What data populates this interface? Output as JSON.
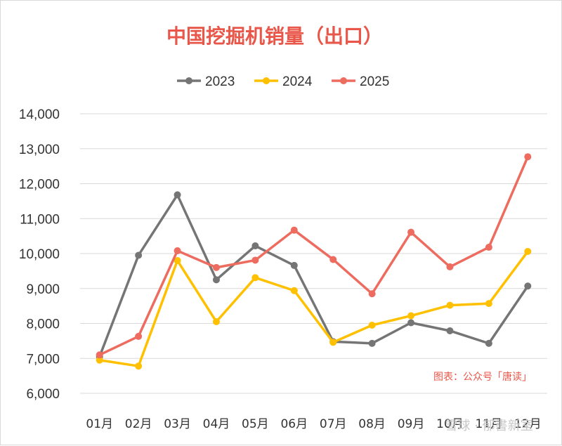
{
  "chart_data": {
    "type": "line",
    "title": "中国挖掘机销量（出口）",
    "xlabel": "",
    "ylabel": "",
    "categories": [
      "01月",
      "02月",
      "03月",
      "04月",
      "05月",
      "06月",
      "07月",
      "08月",
      "09月",
      "10月",
      "11月",
      "12月"
    ],
    "ylim": [
      6000,
      14000
    ],
    "yticks": [
      "6,000",
      "7,000",
      "8,000",
      "9,000",
      "10,000",
      "11,000",
      "12,000",
      "13,000",
      "14,000"
    ],
    "grid": true,
    "legend_position": "top",
    "series": [
      {
        "name": "2023",
        "color": "#757575",
        "values": [
          7050,
          9950,
          11680,
          9250,
          10220,
          9660,
          7480,
          7430,
          8020,
          7790,
          7430,
          9070
        ]
      },
      {
        "name": "2024",
        "color": "#ffc000",
        "values": [
          6950,
          6780,
          9800,
          8050,
          9310,
          8940,
          7460,
          7950,
          8220,
          8520,
          8570,
          10060
        ]
      },
      {
        "name": "2025",
        "color": "#ed6c5f",
        "values": [
          7100,
          7630,
          10080,
          9600,
          9810,
          10670,
          9830,
          8850,
          10610,
          9620,
          10180,
          12770
        ]
      }
    ],
    "source_note": "图表：公众号「唐读」",
    "watermark": "雪球 · 郁書新室"
  },
  "colors": {
    "title": "#e8574a",
    "grid": "#d9d9d9",
    "source": "#e8574a"
  }
}
